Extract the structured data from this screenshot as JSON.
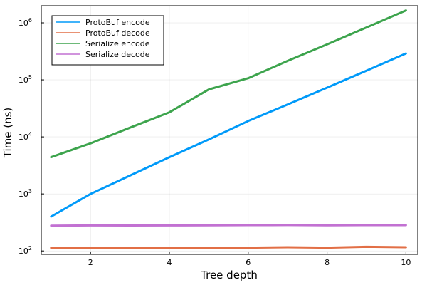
{
  "chart_data": {
    "type": "line",
    "title": "",
    "xlabel": "Tree depth",
    "ylabel": "Time (ns)",
    "yscale": "log10",
    "xlim": [
      0.75,
      10.3
    ],
    "ylim_log10": [
      1.94,
      6.3
    ],
    "x_ticks": [
      2,
      4,
      6,
      8,
      10
    ],
    "y_ticks": [
      {
        "base": "10",
        "exp": "2",
        "value": 100
      },
      {
        "base": "10",
        "exp": "3",
        "value": 1000
      },
      {
        "base": "10",
        "exp": "4",
        "value": 10000
      },
      {
        "base": "10",
        "exp": "5",
        "value": 100000
      },
      {
        "base": "10",
        "exp": "6",
        "value": 1000000
      }
    ],
    "x": [
      1,
      2,
      3,
      4,
      5,
      6,
      7,
      8,
      9,
      10
    ],
    "grid": true,
    "legend_position": "top-left",
    "series": [
      {
        "name": "ProtoBuf encode",
        "color": "#009af9",
        "values": [
          400,
          1000,
          2100,
          4400,
          9000,
          19000,
          37000,
          73000,
          145000,
          290000
        ]
      },
      {
        "name": "ProtoBuf decode",
        "color": "#e26f46",
        "values": [
          113,
          114,
          113,
          114,
          113,
          114,
          116,
          114,
          118,
          116
        ]
      },
      {
        "name": "Serialize encode",
        "color": "#3da44d",
        "values": [
          4400,
          7700,
          14500,
          27000,
          68000,
          107000,
          215000,
          420000,
          830000,
          1650000
        ]
      },
      {
        "name": "Serialize decode",
        "color": "#c271d2",
        "values": [
          278,
          280,
          279,
          280,
          281,
          283,
          284,
          282,
          283,
          283
        ]
      }
    ]
  }
}
